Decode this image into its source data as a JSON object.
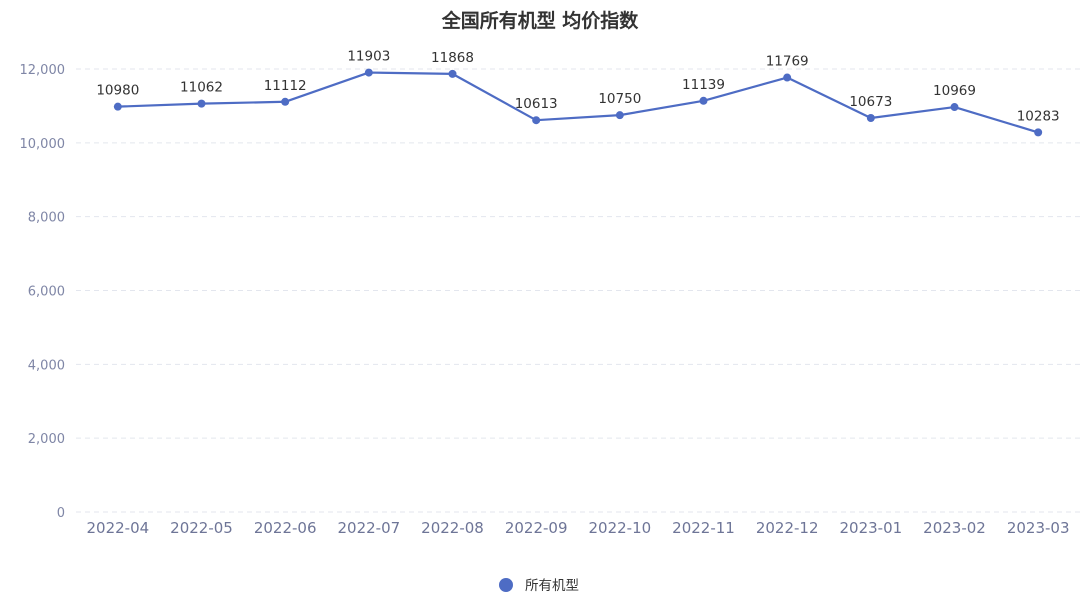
{
  "chart_data": {
    "type": "line",
    "title": "全国所有机型 均价指数",
    "categories": [
      "2022-04",
      "2022-05",
      "2022-06",
      "2022-07",
      "2022-08",
      "2022-09",
      "2022-10",
      "2022-11",
      "2022-12",
      "2023-01",
      "2023-02",
      "2023-03"
    ],
    "series": [
      {
        "name": "所有机型",
        "values": [
          10980,
          11062,
          11112,
          11903,
          11868,
          10613,
          10750,
          11139,
          11769,
          10673,
          10969,
          10283
        ],
        "color": "#4e6cc4"
      }
    ],
    "ylim": [
      0,
      12000
    ],
    "yticks": [
      0,
      2000,
      4000,
      6000,
      8000,
      10000,
      12000
    ],
    "ytick_labels": [
      "0",
      "2,000",
      "4,000",
      "6,000",
      "8,000",
      "10,000",
      "12,000"
    ],
    "grid": "horizontal dashed",
    "legend": "bottom-center",
    "data_labels": true
  },
  "colors": {
    "line": "#4e6cc4",
    "grid": "#e3e6ee",
    "axis": "#6e7597"
  }
}
